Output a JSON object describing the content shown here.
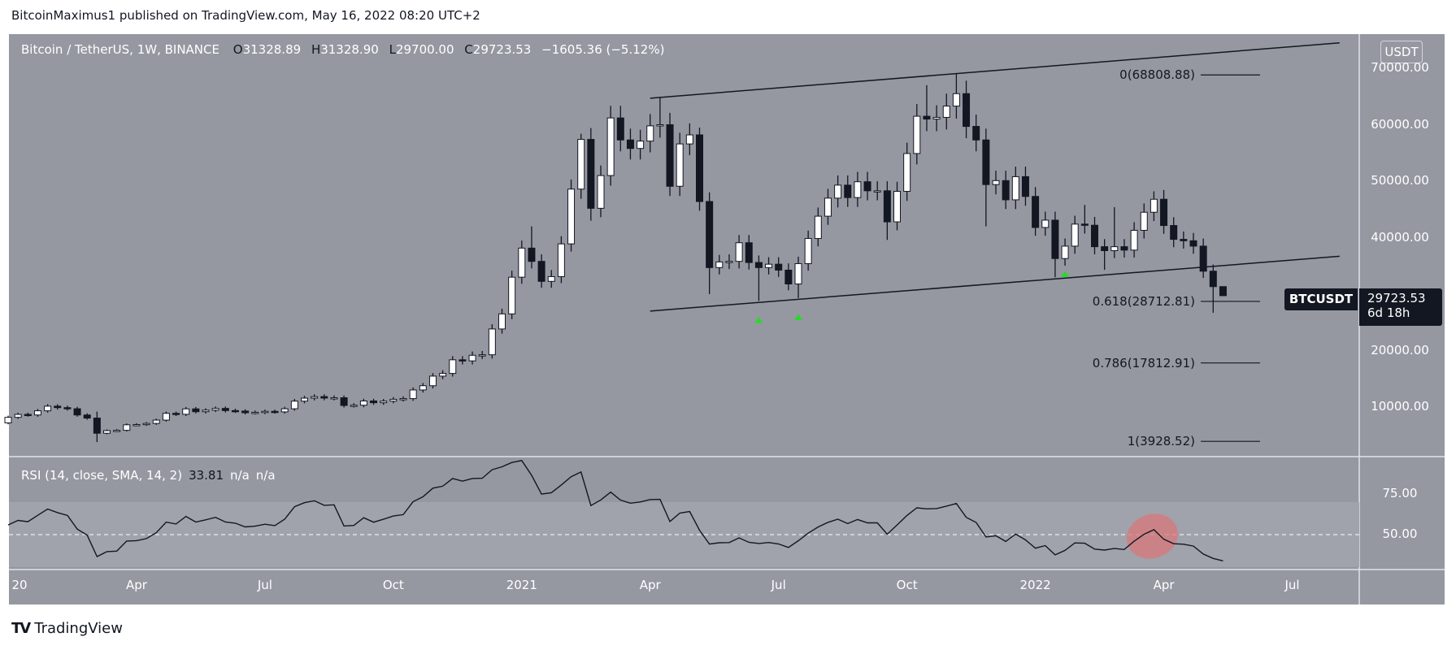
{
  "publish_line": "BitcoinMaximus1 published on TradingView.com, May 16, 2022 08:20 UTC+2",
  "legend": {
    "symbol": "Bitcoin / TetherUS, 1W, BINANCE",
    "o_key": "O",
    "o": "31328.89",
    "h_key": "H",
    "h": "31328.90",
    "l_key": "L",
    "l": "29700.00",
    "c_key": "C",
    "c": "29723.53",
    "change": "−1605.36 (−5.12%)"
  },
  "price_axis": {
    "currency": "USDT",
    "labels": [
      "70000.00",
      "60000.00",
      "50000.00",
      "40000.00",
      "20000.00",
      "10000.00"
    ],
    "values": [
      70000,
      60000,
      50000,
      40000,
      20000,
      10000
    ]
  },
  "last_price": {
    "symbol": "BTCUSDT",
    "price": "29723.53",
    "countdown": "6d 18h"
  },
  "fib_levels": [
    {
      "label": "0(68808.88)",
      "price": 68808.88
    },
    {
      "label": "0.618(28712.81)",
      "price": 28712.81
    },
    {
      "label": "0.786(17812.91)",
      "price": 17812.91
    },
    {
      "label": "1(3928.52)",
      "price": 3928.52
    }
  ],
  "time_axis": {
    "labels": [
      "20",
      "Apr",
      "Jul",
      "Oct",
      "2021",
      "Apr",
      "Jul",
      "Oct",
      "2022",
      "Apr",
      "Jul"
    ],
    "week_index": [
      0,
      13,
      26,
      39,
      52,
      65,
      78,
      91,
      104,
      117,
      130
    ]
  },
  "rsi": {
    "legend": "RSI (14, close, SMA, 14, 2)",
    "value": "33.81",
    "na1": "n/a",
    "na2": "n/a",
    "labels": [
      "75.00",
      "50.00"
    ],
    "band": [
      30,
      70
    ]
  },
  "footer": {
    "logo": "TV",
    "brand": "TradingView"
  },
  "colors": {
    "bg": "#9598a1",
    "bear": "#131722",
    "bull": "#ffffff",
    "signal": "#22dd22",
    "highlight": "#d9777a"
  },
  "chart_data": {
    "type": "candlestick",
    "title": "Bitcoin / TetherUS, 1W, BINANCE",
    "interval": "1W",
    "start_week": "2020-01-06",
    "first_open": 7200,
    "closes": [
      8180,
      8700,
      8600,
      9340,
      10160,
      9900,
      9700,
      8600,
      8050,
      5360,
      5830,
      5880,
      6860,
      6900,
      7100,
      7690,
      8890,
      8720,
      9680,
      9180,
      9450,
      9760,
      9380,
      9290,
      9000,
      9070,
      9240,
      9150,
      9700,
      11050,
      11580,
      11850,
      11590,
      11650,
      10280,
      10330,
      11080,
      10770,
      11050,
      11370,
      11500,
      13030,
      13780,
      15480,
      15960,
      18370,
      18180,
      19170,
      19260,
      23830,
      26500,
      33000,
      38150,
      35800,
      32260,
      33100,
      38900,
      48600,
      57400,
      45200,
      51000,
      61200,
      57300,
      55800,
      57100,
      59800,
      60000,
      49100,
      56600,
      58200,
      46400,
      34700,
      35700,
      35800,
      39100,
      35600,
      34700,
      35300,
      34250,
      31800,
      35400,
      39850,
      43800,
      47000,
      49300,
      47100,
      49900,
      48300,
      48300,
      42800,
      48200,
      54900,
      61500,
      61000,
      61300,
      63300,
      65500,
      59700,
      57300,
      49400,
      50100,
      46700,
      50800,
      47300,
      41800,
      43100,
      36300,
      38500,
      42400,
      42200,
      38400,
      37700,
      38400,
      37800,
      41300,
      44500,
      46800,
      42150,
      39700,
      39450,
      38500,
      34060,
      31328.89,
      29723.53
    ],
    "high_overrides": {
      "9": 9200,
      "53": 42000,
      "58": 58400,
      "66": 64850,
      "70": 59500,
      "93": 67000,
      "96": 69000,
      "109": 45800,
      "112": 45400,
      "116": 48200,
      "123": 31328.9
    },
    "low_overrides": {
      "9": 3800,
      "59": 43000,
      "71": 30000,
      "76": 28800,
      "80": 29300,
      "89": 39600,
      "99": 42000,
      "106": 33000,
      "111": 34300,
      "122": 26700,
      "123": 29700
    },
    "ylim": [
      0,
      76000
    ],
    "channel": {
      "upper": [
        [
          64700,
          "2021-04-05"
        ],
        [
          74500,
          "2022-08-15"
        ]
      ],
      "lower": [
        [
          27000,
          "2021-04-05"
        ],
        [
          36700,
          "2022-08-15"
        ]
      ]
    },
    "signals_week_index": [
      76,
      80,
      107
    ],
    "rsi_highlight_week_index": 116
  }
}
